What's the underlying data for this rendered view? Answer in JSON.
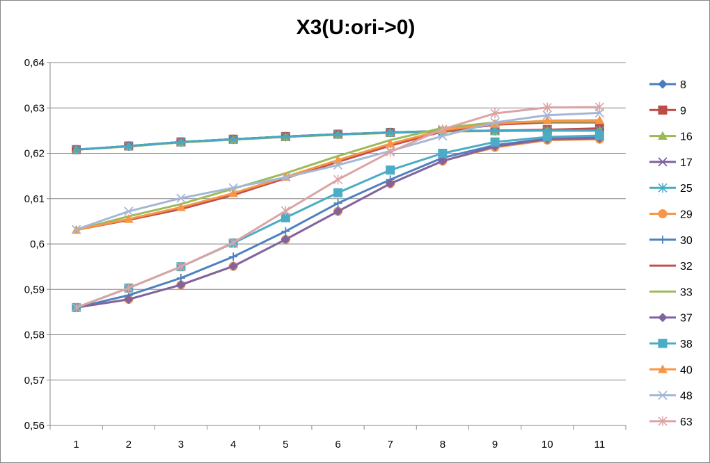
{
  "chart_data": {
    "type": "line",
    "title": "X3(U:ori->0)",
    "xlabel": "",
    "ylabel": "",
    "categories": [
      "1",
      "2",
      "3",
      "4",
      "5",
      "6",
      "7",
      "8",
      "9",
      "10",
      "11"
    ],
    "ylim": [
      0.56,
      0.64
    ],
    "yticks": [
      0.56,
      0.57,
      0.58,
      0.59,
      0.6,
      0.61,
      0.62,
      0.63,
      0.64
    ],
    "ytick_labels": [
      "0,56",
      "0,57",
      "0,58",
      "0,59",
      "0,6",
      "0,61",
      "0,62",
      "0,63",
      "0,64"
    ],
    "grid": true,
    "legend_position": "right",
    "series": [
      {
        "name": "8",
        "color": "#4A7EBB",
        "marker": "diamond",
        "values": [
          0.6208,
          0.6216,
          0.6225,
          0.6231,
          0.6237,
          0.6242,
          0.6246,
          0.6249,
          0.625,
          0.6251,
          0.6252
        ]
      },
      {
        "name": "9",
        "color": "#BE4B48",
        "marker": "square",
        "values": [
          0.6208,
          0.6216,
          0.6225,
          0.6231,
          0.6237,
          0.6242,
          0.6246,
          0.6249,
          0.625,
          0.6252,
          0.6255
        ]
      },
      {
        "name": "16",
        "color": "#98B954",
        "marker": "triangle",
        "values": [
          0.6208,
          0.6215,
          0.6224,
          0.623,
          0.6236,
          0.6241,
          0.6245,
          0.6248,
          0.6249,
          0.625,
          0.625
        ]
      },
      {
        "name": "17",
        "color": "#7D60A0",
        "marker": "x",
        "values": [
          0.6208,
          0.6216,
          0.6225,
          0.6231,
          0.6237,
          0.6242,
          0.6246,
          0.6249,
          0.625,
          0.625,
          0.625
        ]
      },
      {
        "name": "25",
        "color": "#46AAC5",
        "marker": "star",
        "values": [
          0.6208,
          0.6216,
          0.6225,
          0.6231,
          0.6237,
          0.6242,
          0.6246,
          0.6249,
          0.625,
          0.625,
          0.625
        ]
      },
      {
        "name": "29",
        "color": "#F79646",
        "marker": "circle",
        "values": [
          0.586,
          0.5878,
          0.591,
          0.5951,
          0.601,
          0.6072,
          0.6133,
          0.6183,
          0.6213,
          0.6229,
          0.6231
        ]
      },
      {
        "name": "30",
        "color": "#4F81BD",
        "marker": "plus",
        "values": [
          0.586,
          0.5887,
          0.5925,
          0.5972,
          0.6028,
          0.609,
          0.6142,
          0.619,
          0.6218,
          0.6232,
          0.6235
        ]
      },
      {
        "name": "32",
        "color": "#C0504D",
        "marker": "none",
        "values": [
          0.6031,
          0.6053,
          0.6077,
          0.6108,
          0.6145,
          0.6181,
          0.6217,
          0.6248,
          0.6263,
          0.6268,
          0.6268
        ]
      },
      {
        "name": "33",
        "color": "#9BBB59",
        "marker": "none",
        "values": [
          0.6031,
          0.6061,
          0.6088,
          0.6122,
          0.6156,
          0.6194,
          0.6229,
          0.6256,
          0.6268,
          0.627,
          0.627
        ]
      },
      {
        "name": "37",
        "color": "#8064A2",
        "marker": "diamond",
        "values": [
          0.586,
          0.5878,
          0.591,
          0.5951,
          0.601,
          0.6072,
          0.6133,
          0.6183,
          0.6215,
          0.6231,
          0.6233
        ]
      },
      {
        "name": "38",
        "color": "#4BACC6",
        "marker": "square",
        "values": [
          0.586,
          0.5903,
          0.595,
          0.6002,
          0.6058,
          0.6113,
          0.6163,
          0.62,
          0.6225,
          0.6236,
          0.6239
        ]
      },
      {
        "name": "40",
        "color": "#F79646",
        "marker": "triangle",
        "values": [
          0.6031,
          0.6055,
          0.6081,
          0.6112,
          0.6148,
          0.6185,
          0.6221,
          0.6251,
          0.6265,
          0.6272,
          0.6273
        ]
      },
      {
        "name": "48",
        "color": "#A5B7D6",
        "marker": "x",
        "values": [
          0.6032,
          0.6072,
          0.6101,
          0.6124,
          0.6147,
          0.6174,
          0.6205,
          0.6238,
          0.6268,
          0.6284,
          0.6289
        ]
      },
      {
        "name": "63",
        "color": "#DBA4A3",
        "marker": "star",
        "values": [
          0.586,
          0.5903,
          0.595,
          0.6003,
          0.6073,
          0.6142,
          0.6203,
          0.6253,
          0.6288,
          0.6301,
          0.6302
        ]
      }
    ]
  }
}
